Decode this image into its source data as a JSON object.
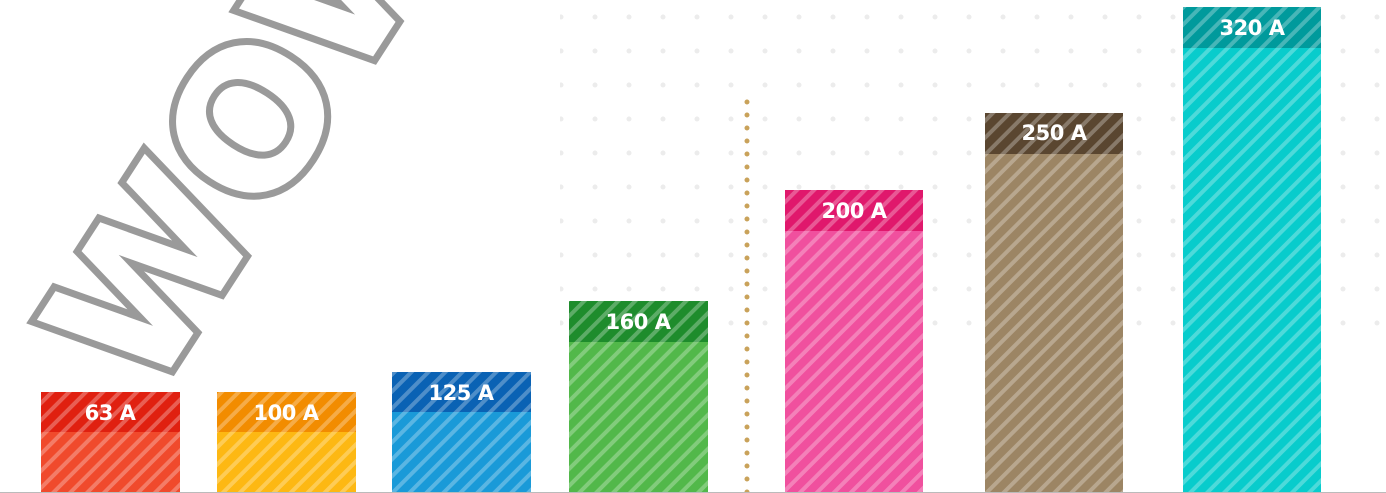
{
  "watermark": "WOW",
  "bars": [
    {
      "label": "63 A"
    },
    {
      "label": "100 A"
    },
    {
      "label": "125 A"
    },
    {
      "label": "160 A"
    },
    {
      "label": "200 A"
    },
    {
      "label": "250 A"
    },
    {
      "label": "320 A"
    }
  ]
}
